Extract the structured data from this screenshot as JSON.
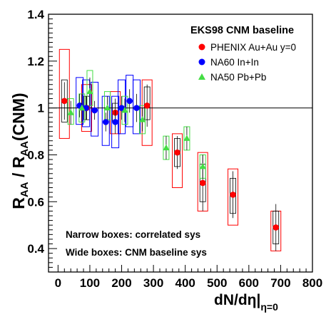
{
  "chart_data": {
    "type": "scatter",
    "xlabel_main": "dN/dη|",
    "xlabel_sub": "η=0",
    "ylabel": "R",
    "ylim": [
      0.3,
      1.4
    ],
    "xlim": [
      -30,
      800
    ],
    "x_ticks": [
      0,
      100,
      200,
      300,
      400,
      500,
      600,
      700,
      800
    ],
    "y_ticks": [
      0.4,
      0.6,
      0.8,
      1,
      1.2,
      1.4
    ],
    "y_tick_labels": [
      "0.4",
      "0.6",
      "0.8",
      "1",
      "1.2",
      "1.4"
    ],
    "reference_line": 1.0,
    "legend": {
      "title": "EKS98 CNM baseline",
      "position": "top-right"
    },
    "annotations": [
      "Narrow boxes: correlated sys",
      "Wide boxes: CNM baseline sys"
    ],
    "series": [
      {
        "name": "PHENIX Au+Au y=0",
        "marker": "circle",
        "color": "#ff0000",
        "points": [
          {
            "x": 20,
            "y": 1.03,
            "err": 0.08,
            "sys_lo": 0.94,
            "sys_hi": 1.12,
            "cnm_lo": 0.87,
            "cnm_hi": 1.25
          },
          {
            "x": 90,
            "y": 1.0,
            "err": 0.05,
            "sys_lo": 0.95,
            "sys_hi": 1.05,
            "cnm_lo": 0.9,
            "cnm_hi": 1.1
          },
          {
            "x": 180,
            "y": 0.98,
            "err": 0.06,
            "sys_lo": 0.94,
            "sys_hi": 1.02,
            "cnm_lo": 0.89,
            "cnm_hi": 1.07
          },
          {
            "x": 280,
            "y": 1.01,
            "err": 0.09,
            "sys_lo": 0.95,
            "sys_hi": 1.09,
            "cnm_lo": 0.84,
            "cnm_hi": 1.12
          },
          {
            "x": 375,
            "y": 0.81,
            "err": 0.07,
            "sys_lo": 0.75,
            "sys_hi": 0.87,
            "cnm_lo": 0.66,
            "cnm_hi": 0.89
          },
          {
            "x": 455,
            "y": 0.68,
            "err": 0.12,
            "sys_lo": 0.6,
            "sys_hi": 0.76,
            "cnm_lo": 0.56,
            "cnm_hi": 0.81
          },
          {
            "x": 550,
            "y": 0.63,
            "err": 0.1,
            "sys_lo": 0.55,
            "sys_hi": 0.7,
            "cnm_lo": 0.5,
            "cnm_hi": 0.74
          },
          {
            "x": 685,
            "y": 0.49,
            "err": 0.1,
            "sys_lo": 0.42,
            "sys_hi": 0.56,
            "cnm_lo": 0.39,
            "cnm_hi": 0.56
          }
        ]
      },
      {
        "name": "NA60 In+In",
        "marker": "circle",
        "color": "#0000ff",
        "points": [
          {
            "x": 68,
            "y": 1.01,
            "err": 0.05,
            "sys_lo": 0.93,
            "sys_hi": 1.13
          },
          {
            "x": 88,
            "y": 1.0,
            "err": 0.05,
            "sys_lo": 0.92,
            "sys_hi": 1.12
          },
          {
            "x": 115,
            "y": 0.99,
            "err": 0.04,
            "sys_lo": 0.88,
            "sys_hi": 1.11
          },
          {
            "x": 150,
            "y": 0.94,
            "err": 0.04,
            "sys_lo": 0.84,
            "sys_hi": 1.05
          },
          {
            "x": 180,
            "y": 0.94,
            "err": 0.05,
            "sys_lo": 0.83,
            "sys_hi": 1.05
          },
          {
            "x": 200,
            "y": 1.0,
            "err": 0.05,
            "sys_lo": 0.89,
            "sys_hi": 1.12
          },
          {
            "x": 225,
            "y": 1.03,
            "err": 0.05,
            "sys_lo": 0.92,
            "sys_hi": 1.14
          },
          {
            "x": 247,
            "y": 1.0,
            "err": 0.06,
            "sys_lo": 0.89,
            "sys_hi": 1.12
          }
        ]
      },
      {
        "name": "NA50 Pb+Pb",
        "marker": "triangle",
        "color": "#44dd44",
        "points": [
          {
            "x": 40,
            "y": 0.98,
            "err": 0.05,
            "sys_lo": 0.93,
            "sys_hi": 1.04
          },
          {
            "x": 75,
            "y": 1.0,
            "err": 0.06,
            "sys_lo": 0.94,
            "sys_hi": 1.06
          },
          {
            "x": 100,
            "y": 1.07,
            "err": 0.06,
            "sys_lo": 1.01,
            "sys_hi": 1.16
          },
          {
            "x": 155,
            "y": 1.0,
            "err": 0.05,
            "sys_lo": 0.95,
            "sys_hi": 1.07
          },
          {
            "x": 210,
            "y": 0.99,
            "err": 0.05,
            "sys_lo": 0.93,
            "sys_hi": 1.05
          },
          {
            "x": 265,
            "y": 0.95,
            "err": 0.05,
            "sys_lo": 0.89,
            "sys_hi": 1.01
          },
          {
            "x": 340,
            "y": 0.83,
            "err": 0.05,
            "sys_lo": 0.78,
            "sys_hi": 0.88
          },
          {
            "x": 405,
            "y": 0.87,
            "err": 0.05,
            "sys_lo": 0.82,
            "sys_hi": 0.92
          },
          {
            "x": 455,
            "y": 0.75,
            "err": 0.05,
            "sys_lo": 0.7,
            "sys_hi": 0.8
          }
        ]
      }
    ]
  }
}
